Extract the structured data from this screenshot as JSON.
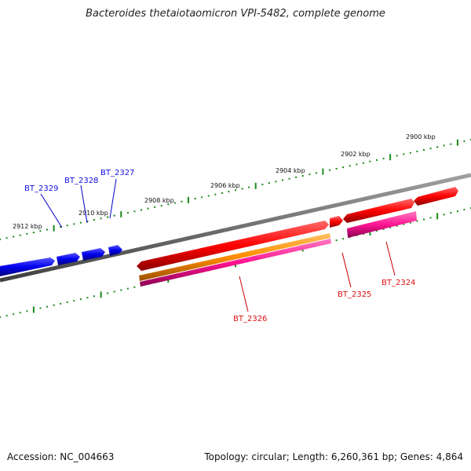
{
  "title": "Bacteroides thetaiotaomicron VPI-5482, complete genome",
  "footer": {
    "accession": "Accession: NC_004663",
    "summary": "Topology: circular; Length: 6,260,361 bp; Genes: 4,864"
  },
  "ruler_labels": [
    "2900 kbp",
    "2902 kbp",
    "2904 kbp",
    "2906 kbp",
    "2908 kbp",
    "2910 kbp",
    "2912 kbp"
  ],
  "genes": [
    {
      "name": "BT_2329",
      "strand": "reverse",
      "color": "#1010e0"
    },
    {
      "name": "BT_2328",
      "strand": "reverse",
      "color": "#1010e0"
    },
    {
      "name": "BT_2327",
      "strand": "reverse",
      "color": "#1010e0"
    },
    {
      "name": "BT_2326",
      "strand": "forward",
      "color": "#dd1111"
    },
    {
      "name": "BT_2325",
      "strand": "forward",
      "color": "#dd1111"
    },
    {
      "name": "BT_2324",
      "strand": "forward",
      "color": "#dd1111"
    }
  ],
  "feature_colors": {
    "cds": "#ff0000",
    "orange": "#ff8c00",
    "pink": "#ff1493",
    "axis": "#707070",
    "ticks": "#1a8a1a"
  }
}
